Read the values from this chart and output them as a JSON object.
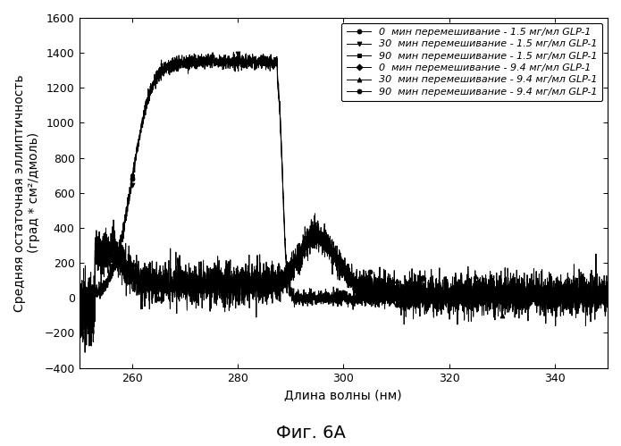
{
  "title": "Фиг. 6А",
  "xlabel": "Длина волны (нм)",
  "ylabel": "Средняя остаточная эллиптичность\n(град * см²/дмоль)",
  "xlim": [
    250,
    350
  ],
  "ylim": [
    -400,
    1600
  ],
  "yticks": [
    -400,
    -200,
    0,
    200,
    400,
    600,
    800,
    1000,
    1200,
    1400,
    1600
  ],
  "xticks": [
    260,
    280,
    300,
    320,
    340
  ],
  "legend_entries": [
    "0  мин перемешивание - 1.5 мг/мл GLP-1",
    "30  мин перемешивание - 1.5 мг/мл GLP-1",
    "90  мин перемешивание - 1.5 мг/мл GLP-1",
    "0  мин перемешивание - 9.4 мг/мл GLP-1",
    "30  мин перемешивание - 9.4 мг/мл GLP-1",
    "90  мин перемешивание - 9.4 мг/мл GLP-1"
  ],
  "markers": [
    "o",
    "v",
    "s",
    "D",
    "^",
    "o"
  ],
  "bg_color": "#ffffff",
  "line_color": "#000000",
  "fontsize_title": 14,
  "fontsize_labels": 10,
  "fontsize_legend": 8,
  "fontsize_ticks": 9
}
